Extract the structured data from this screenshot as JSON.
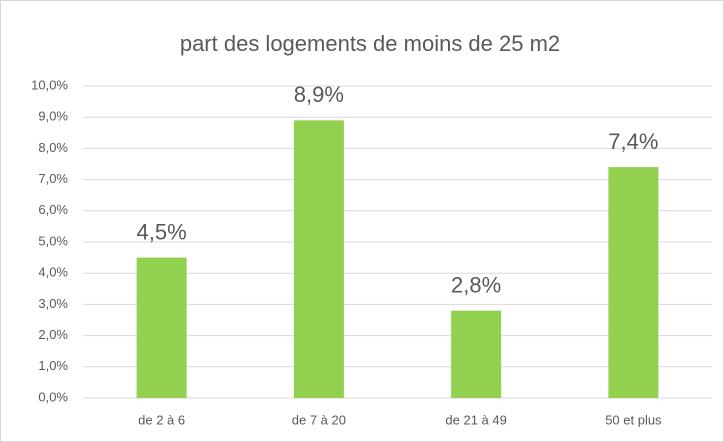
{
  "chart_data": {
    "type": "bar",
    "title": "part des logements de moins de 25 m2",
    "categories": [
      "de 2 à 6",
      "de 7 à 20",
      "de 21 à 49",
      "50 et plus"
    ],
    "values": [
      4.5,
      8.9,
      2.8,
      7.4
    ],
    "value_labels": [
      "4,5%",
      "8,9%",
      "2,8%",
      "7,4%"
    ],
    "color": "#92d050",
    "ylim": [
      0,
      10
    ],
    "yticks": [
      {
        "value": 0,
        "label": "0,0%"
      },
      {
        "value": 1,
        "label": "1,0%"
      },
      {
        "value": 2,
        "label": "2,0%"
      },
      {
        "value": 3,
        "label": "3,0%"
      },
      {
        "value": 4,
        "label": "4,0%"
      },
      {
        "value": 5,
        "label": "5,0%"
      },
      {
        "value": 6,
        "label": "6,0%"
      },
      {
        "value": 7,
        "label": "7,0%"
      },
      {
        "value": 8,
        "label": "8,0%"
      },
      {
        "value": 9,
        "label": "9,0%"
      },
      {
        "value": 10,
        "label": "10,0%"
      }
    ],
    "grid": true
  }
}
